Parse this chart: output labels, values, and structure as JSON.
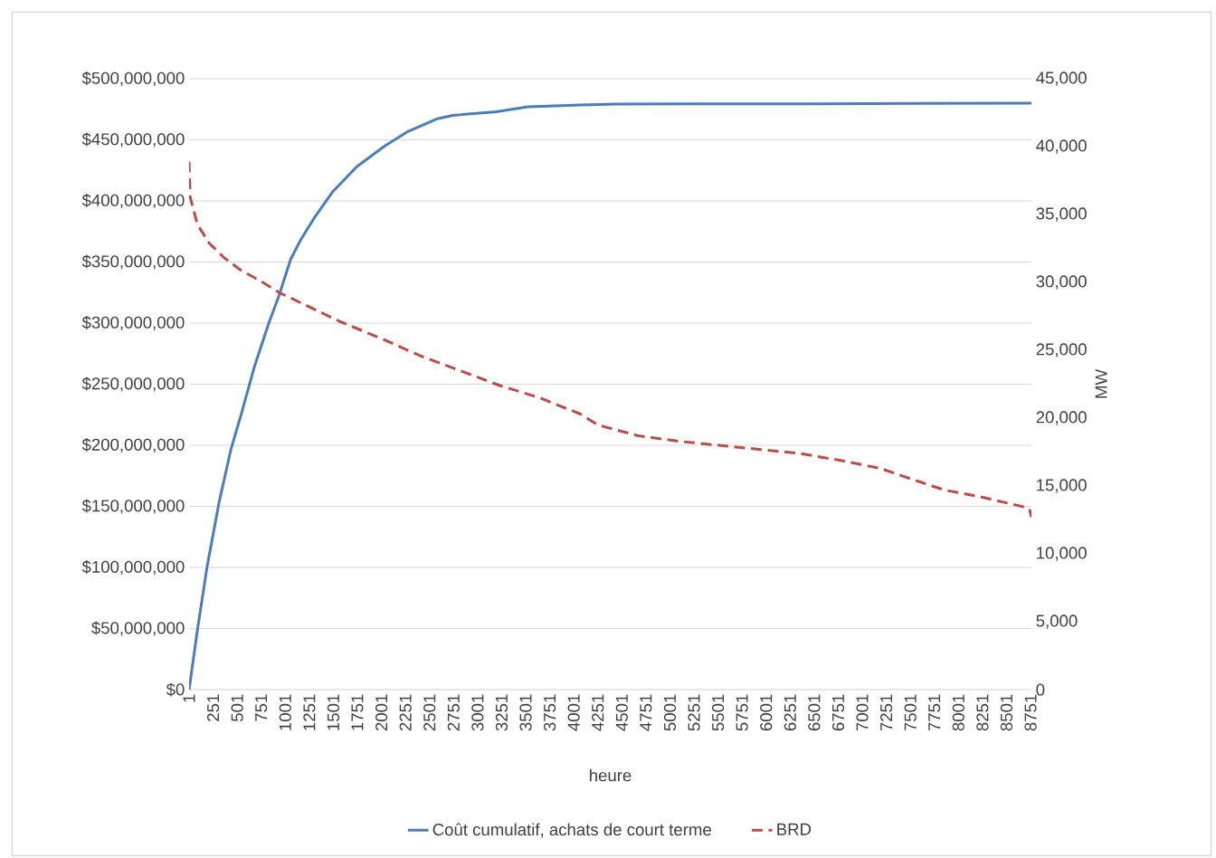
{
  "chart_data": {
    "type": "line",
    "xlabel": "heure",
    "y2label": "MW",
    "xlim": [
      1,
      8760
    ],
    "xticks": [
      1,
      251,
      501,
      751,
      1001,
      1251,
      1501,
      1751,
      2001,
      2251,
      2501,
      2751,
      3001,
      3251,
      3501,
      3751,
      4001,
      4251,
      4501,
      4751,
      5001,
      5251,
      5501,
      5751,
      6001,
      6251,
      6501,
      6751,
      7001,
      7251,
      7501,
      7751,
      8001,
      8251,
      8501,
      8751
    ],
    "ylim": [
      0,
      500000000
    ],
    "yticks": [
      {
        "value": 0,
        "label": "$0"
      },
      {
        "value": 50000000,
        "label": "$50,000,000"
      },
      {
        "value": 100000000,
        "label": "$100,000,000"
      },
      {
        "value": 150000000,
        "label": "$150,000,000"
      },
      {
        "value": 200000000,
        "label": "$200,000,000"
      },
      {
        "value": 250000000,
        "label": "$250,000,000"
      },
      {
        "value": 300000000,
        "label": "$300,000,000"
      },
      {
        "value": 350000000,
        "label": "$350,000,000"
      },
      {
        "value": 400000000,
        "label": "$400,000,000"
      },
      {
        "value": 450000000,
        "label": "$450,000,000"
      },
      {
        "value": 500000000,
        "label": "$500,000,000"
      }
    ],
    "y2lim": [
      0,
      45000
    ],
    "y2ticks": [
      0,
      {
        "value": 5000,
        "label": "5,000"
      },
      {
        "value": 10000,
        "label": "10,000"
      },
      {
        "value": 15000,
        "label": "15,000"
      },
      {
        "value": 20000,
        "label": "20,000"
      },
      {
        "value": 25000,
        "label": "25,000"
      },
      {
        "value": 30000,
        "label": "30,000"
      },
      {
        "value": 35000,
        "label": "35,000"
      },
      {
        "value": 40000,
        "label": "40,000"
      },
      {
        "value": 45000,
        "label": "45,000"
      }
    ],
    "grid": "y",
    "legend": "bottom",
    "series": [
      {
        "name": "Coût cumulatif, achats de court terme",
        "color": "#4a7ebb",
        "line_style": "solid",
        "x": [
          1,
          86,
          189,
          312,
          434,
          538,
          679,
          830,
          934,
          1056,
          1160,
          1310,
          1489,
          1744,
          2036,
          2281,
          2573,
          2742,
          3194,
          3524,
          4071,
          4438,
          6510,
          8760
        ],
        "values": [
          0,
          48000000,
          101000000,
          153000000,
          196000000,
          224000000,
          264000000,
          300000000,
          322000000,
          352000000,
          368000000,
          387000000,
          407000000,
          428000000,
          445000000,
          457000000,
          467000000,
          470000000,
          473000000,
          477000000,
          478500000,
          479300000,
          479500000,
          480000000
        ]
      },
      {
        "name": "BRD",
        "color": "#be4b48",
        "line_style": "dashed",
        "axis": "y2",
        "x": [
          1,
          12,
          86,
          208,
          368,
          538,
          745,
          952,
          1160,
          1574,
          1989,
          2403,
          2818,
          3232,
          3646,
          4071,
          4249,
          4673,
          5088,
          5512,
          5926,
          6350,
          6765,
          7189,
          7518,
          7857,
          8234,
          8658,
          8740,
          8760
        ],
        "values": [
          38900,
          36300,
          34300,
          32900,
          31800,
          30900,
          30100,
          29200,
          28500,
          27100,
          25900,
          24600,
          23500,
          22400,
          21500,
          20300,
          19500,
          18700,
          18300,
          18000,
          17700,
          17400,
          16900,
          16300,
          15500,
          14700,
          14200,
          13500,
          13300,
          12700
        ]
      }
    ]
  }
}
